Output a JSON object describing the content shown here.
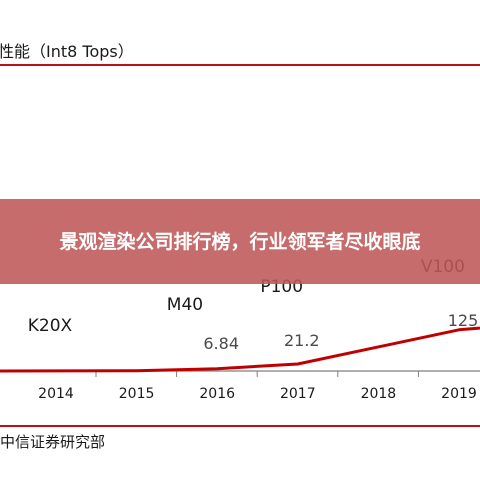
{
  "banner": {
    "headline": "景观渲染公司排行榜，行业领军者尽收眼底"
  },
  "chart_data": {
    "type": "line",
    "title": "性能（Int8 Tops）",
    "source": "中信证券研究部",
    "x_ticks": [
      "2014",
      "2015",
      "2016",
      "2017",
      "2018",
      "2019"
    ],
    "ylim": [
      0,
      130
    ],
    "series": [
      {
        "values": [
          {
            "x": 2013.3,
            "y": 0
          },
          {
            "x": 2014,
            "y": 0.3
          },
          {
            "x": 2015,
            "y": 0.8
          },
          {
            "x": 2016,
            "y": 6.84
          },
          {
            "x": 2017,
            "y": 21.2
          },
          {
            "x": 2019,
            "y": 125
          },
          {
            "x": 2019.25,
            "y": 130
          }
        ]
      }
    ],
    "data_labels": [
      {
        "text": "6.84",
        "x": 2016,
        "y": 6.84
      },
      {
        "text": "21.2",
        "x": 2017,
        "y": 21.2
      },
      {
        "text": "125",
        "x": 2019,
        "y": 125
      }
    ],
    "product_labels": [
      {
        "text": "K20X",
        "x": 2014
      },
      {
        "text": "M40",
        "x": 2015.6
      },
      {
        "text": "P100",
        "x": 2016.8
      },
      {
        "text": "V100",
        "x": 2018.8
      }
    ],
    "grid": false
  },
  "colors": {
    "line": "#c00000",
    "rule": "#b5121b",
    "banner": "#be5858"
  }
}
